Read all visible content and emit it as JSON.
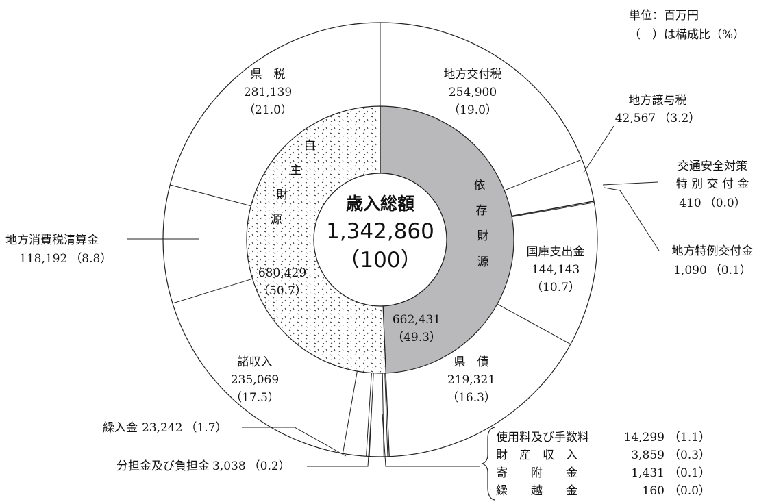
{
  "chart_data": {
    "type": "pie",
    "unit_note": "単位：百万円",
    "ratio_note": "（　）は構成比（%）",
    "center_title": "歳入総額",
    "center_total": "1,342,860",
    "center_pct": "（100）",
    "outer_slices": [
      {
        "name": "地方交付税",
        "value": 254900,
        "value_label": "254,900",
        "pct": "（19.0）"
      },
      {
        "name": "地方譲与税",
        "value": 42567,
        "value_label": "42,567",
        "pct": "（3.2）"
      },
      {
        "name": "交通安全対策特別交付金",
        "value": 410,
        "value_label": "410",
        "pct": "（0.0）"
      },
      {
        "name": "地方特例交付金",
        "value": 1090,
        "value_label": "1,090",
        "pct": "（0.1）"
      },
      {
        "name": "国庫支出金",
        "value": 144143,
        "value_label": "144,143",
        "pct": "（10.7）"
      },
      {
        "name": "県債",
        "value": 219321,
        "value_label": "219,321",
        "pct": "（16.3）"
      },
      {
        "name": "繰越金",
        "value": 160,
        "value_label": "160",
        "pct": "（0.0）"
      },
      {
        "name": "寄附金",
        "value": 1431,
        "value_label": "1,431",
        "pct": "（0.1）"
      },
      {
        "name": "財産収入",
        "value": 3859,
        "value_label": "3,859",
        "pct": "（0.3）"
      },
      {
        "name": "使用料及び手数料",
        "value": 14299,
        "value_label": "14,299",
        "pct": "（1.1）"
      },
      {
        "name": "分担金及び負担金",
        "value": 3038,
        "value_label": "3,038",
        "pct": "（0.2）"
      },
      {
        "name": "繰入金",
        "value": 23242,
        "value_label": "23,242",
        "pct": "（1.7）"
      },
      {
        "name": "諸収入",
        "value": 235069,
        "value_label": "235,069",
        "pct": "（17.5）"
      },
      {
        "name": "地方消費税清算金",
        "value": 118192,
        "value_label": "118,192",
        "pct": "（8.8）"
      },
      {
        "name": "県税",
        "value": 281139,
        "value_label": "281,139",
        "pct": "（21.0）"
      }
    ],
    "inner_groups": [
      {
        "name": "依存財源",
        "value": 662431,
        "value_label": "662,431",
        "pct": "（49.3）",
        "fill": "#b9b9bc"
      },
      {
        "name": "自主財源",
        "value": 680429,
        "value_label": "680,429",
        "pct": "（50.7）",
        "fill": "dots"
      }
    ],
    "labels": {
      "kenzei_name": "県　税",
      "kensai_name": "県　債",
      "kotsu_line1": "交通安全対策",
      "kotsu_line2": "特 別 交 付 金",
      "bracket_names": [
        "使用料及び手数料",
        "財　産　収　入",
        "寄　　附　　金",
        "繰　　越　　金"
      ],
      "jishu_chars": [
        "自",
        "主",
        "財",
        "源"
      ],
      "izon_chars": [
        "依",
        "存",
        "財",
        "源"
      ]
    }
  }
}
